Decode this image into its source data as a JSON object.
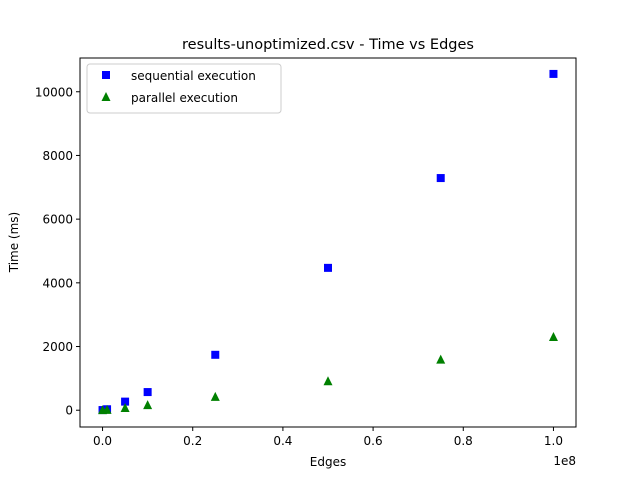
{
  "chart_data": {
    "type": "scatter",
    "title": "results-unoptimized.csv - Time vs Edges",
    "xlabel": "Edges",
    "ylabel": "Time (ms)",
    "x_offset_label": "1e8",
    "xlim": [
      -5000000,
      105000000
    ],
    "ylim": [
      -527,
      11060
    ],
    "x_ticks": [
      0,
      20000000,
      40000000,
      60000000,
      80000000,
      100000000
    ],
    "x_tick_labels": [
      "0.0",
      "0.2",
      "0.4",
      "0.6",
      "0.8",
      "1.0"
    ],
    "y_ticks": [
      0,
      2000,
      4000,
      6000,
      8000,
      10000
    ],
    "y_tick_labels": [
      "0",
      "2000",
      "4000",
      "6000",
      "8000",
      "10000"
    ],
    "grid": false,
    "legend_position": "top-left",
    "series": [
      {
        "name": "sequential execution",
        "marker": "square",
        "color": "#0000ff",
        "x": [
          0,
          1000000,
          5000000,
          10000000,
          25000000,
          50000000,
          75000000,
          100000000
        ],
        "y": [
          5,
          30,
          270,
          570,
          1740,
          4470,
          7290,
          10560
        ]
      },
      {
        "name": "parallel execution",
        "marker": "triangle",
        "color": "#008000",
        "x": [
          0,
          1000000,
          5000000,
          10000000,
          25000000,
          50000000,
          75000000,
          100000000
        ],
        "y": [
          2,
          10,
          70,
          160,
          420,
          910,
          1590,
          2300
        ]
      }
    ]
  }
}
